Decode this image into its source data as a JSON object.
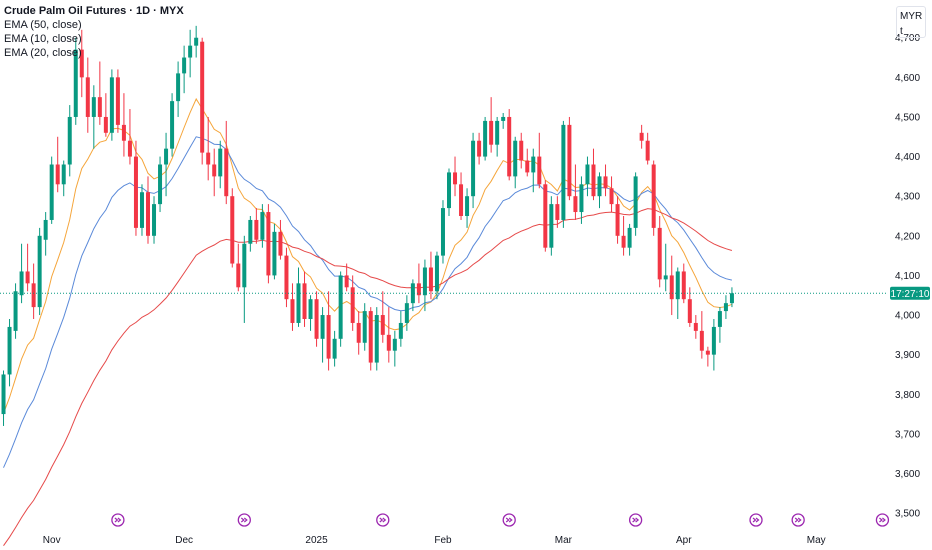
{
  "legend": {
    "title": "Crude Palm Oil Futures · 1D · MYX",
    "ema50": "EMA (50, close)",
    "ema10": "EMA (10, close)",
    "ema20": "EMA (20, close)"
  },
  "scale": {
    "currency": "MYR",
    "unit": "t"
  },
  "price_tag": "17:27:10",
  "colors": {
    "up": "#089981",
    "down": "#f23645",
    "ema10": "#f5a53a",
    "ema20": "#5b8ad9",
    "ema50": "#e64a4a",
    "last": "#089981",
    "event": "#9c27b0"
  },
  "chart_data": {
    "type": "candlestick",
    "title": "Crude Palm Oil Futures · 1D · MYX",
    "ylim": [
      3470,
      4770
    ],
    "yticks": [
      3500,
      3600,
      3700,
      3800,
      3900,
      4000,
      4100,
      4200,
      4300,
      4400,
      4500,
      4600,
      4700
    ],
    "ytick_labels": [
      "3,500",
      "3,600",
      "3,700",
      "3,800",
      "3,900",
      "4,000",
      "4,100",
      "4,200",
      "4,300",
      "4,400",
      "4,500",
      "4,600",
      "4,700"
    ],
    "xticks": [
      {
        "label": "Nov",
        "index": 9
      },
      {
        "label": "Dec",
        "index": 31
      },
      {
        "label": "2025",
        "index": 53
      },
      {
        "label": "Feb",
        "index": 74
      },
      {
        "label": "Mar",
        "index": 94
      },
      {
        "label": "Apr",
        "index": 114
      },
      {
        "label": "May",
        "index": 136
      }
    ],
    "events": [
      20,
      41,
      64,
      85,
      106,
      126,
      133,
      147
    ],
    "last_price": 4055,
    "candles": [
      [
        3750,
        3860,
        3720,
        3850
      ],
      [
        3850,
        3990,
        3820,
        3970
      ],
      [
        3960,
        4080,
        3940,
        4060
      ],
      [
        4050,
        4180,
        4030,
        4110
      ],
      [
        4110,
        4180,
        4060,
        4080
      ],
      [
        4080,
        4130,
        3990,
        4020
      ],
      [
        4020,
        4220,
        4000,
        4200
      ],
      [
        4190,
        4260,
        4150,
        4240
      ],
      [
        4240,
        4400,
        4230,
        4380
      ],
      [
        4380,
        4450,
        4310,
        4330
      ],
      [
        4330,
        4390,
        4300,
        4380
      ],
      [
        4380,
        4530,
        4350,
        4500
      ],
      [
        4500,
        4700,
        4480,
        4670
      ],
      [
        4670,
        4720,
        4550,
        4600
      ],
      [
        4600,
        4650,
        4460,
        4500
      ],
      [
        4500,
        4580,
        4420,
        4550
      ],
      [
        4550,
        4640,
        4480,
        4500
      ],
      [
        4500,
        4560,
        4450,
        4460
      ],
      [
        4460,
        4620,
        4440,
        4600
      ],
      [
        4600,
        4620,
        4460,
        4480
      ],
      [
        4480,
        4560,
        4400,
        4440
      ],
      [
        4440,
        4520,
        4380,
        4400
      ],
      [
        4400,
        4440,
        4200,
        4220
      ],
      [
        4220,
        4330,
        4200,
        4310
      ],
      [
        4310,
        4350,
        4180,
        4200
      ],
      [
        4200,
        4300,
        4180,
        4280
      ],
      [
        4280,
        4400,
        4260,
        4380
      ],
      [
        4380,
        4460,
        4300,
        4420
      ],
      [
        4420,
        4560,
        4400,
        4540
      ],
      [
        4540,
        4640,
        4500,
        4610
      ],
      [
        4610,
        4680,
        4560,
        4650
      ],
      [
        4650,
        4720,
        4600,
        4680
      ],
      [
        4680,
        4730,
        4650,
        4700
      ],
      [
        4690,
        4700,
        4380,
        4410
      ],
      [
        4410,
        4500,
        4340,
        4380
      ],
      [
        4380,
        4420,
        4300,
        4350
      ],
      [
        4350,
        4440,
        4320,
        4420
      ],
      [
        4420,
        4490,
        4280,
        4300
      ],
      [
        4300,
        4320,
        4120,
        4130
      ],
      [
        4130,
        4180,
        4060,
        4070
      ],
      [
        4070,
        4200,
        3980,
        4180
      ],
      [
        4180,
        4250,
        4160,
        4240
      ],
      [
        4240,
        4270,
        4180,
        4190
      ],
      [
        4190,
        4280,
        4170,
        4260
      ],
      [
        4260,
        4280,
        4080,
        4100
      ],
      [
        4100,
        4230,
        4090,
        4210
      ],
      [
        4210,
        4240,
        4140,
        4150
      ],
      [
        4150,
        4170,
        4020,
        4040
      ],
      [
        4040,
        4080,
        3960,
        3980
      ],
      [
        3980,
        4120,
        3970,
        4080
      ],
      [
        4080,
        4110,
        3970,
        3990
      ],
      [
        3990,
        4050,
        3960,
        4040
      ],
      [
        4040,
        4060,
        3920,
        3940
      ],
      [
        3940,
        4020,
        3880,
        4000
      ],
      [
        4000,
        4060,
        3860,
        3890
      ],
      [
        3890,
        3960,
        3870,
        3940
      ],
      [
        3940,
        4110,
        3920,
        4100
      ],
      [
        4100,
        4130,
        4060,
        4070
      ],
      [
        4070,
        4100,
        3960,
        3980
      ],
      [
        3980,
        4010,
        3900,
        3930
      ],
      [
        3930,
        4030,
        3910,
        4010
      ],
      [
        4010,
        4020,
        3860,
        3880
      ],
      [
        3880,
        4020,
        3860,
        4000
      ],
      [
        4000,
        4060,
        3930,
        3950
      ],
      [
        3950,
        4020,
        3880,
        3910
      ],
      [
        3910,
        3960,
        3870,
        3940
      ],
      [
        3940,
        4010,
        3920,
        3980
      ],
      [
        3980,
        4050,
        3960,
        4030
      ],
      [
        4030,
        4090,
        4010,
        4080
      ],
      [
        4080,
        4130,
        4030,
        4050
      ],
      [
        4050,
        4140,
        4010,
        4120
      ],
      [
        4120,
        4160,
        4040,
        4060
      ],
      [
        4060,
        4160,
        4040,
        4150
      ],
      [
        4150,
        4290,
        4130,
        4270
      ],
      [
        4270,
        4370,
        4250,
        4360
      ],
      [
        4360,
        4400,
        4300,
        4330
      ],
      [
        4330,
        4360,
        4240,
        4250
      ],
      [
        4250,
        4320,
        4220,
        4300
      ],
      [
        4300,
        4460,
        4270,
        4440
      ],
      [
        4440,
        4460,
        4380,
        4400
      ],
      [
        4400,
        4500,
        4390,
        4490
      ],
      [
        4490,
        4550,
        4410,
        4430
      ],
      [
        4430,
        4500,
        4400,
        4490
      ],
      [
        4490,
        4510,
        4470,
        4500
      ],
      [
        4500,
        4520,
        4340,
        4350
      ],
      [
        4350,
        4450,
        4320,
        4440
      ],
      [
        4440,
        4460,
        4370,
        4390
      ],
      [
        4390,
        4420,
        4350,
        4360
      ],
      [
        4360,
        4420,
        4310,
        4400
      ],
      [
        4400,
        4460,
        4320,
        4330
      ],
      [
        4330,
        4340,
        4160,
        4170
      ],
      [
        4170,
        4300,
        4150,
        4280
      ],
      [
        4280,
        4300,
        4220,
        4240
      ],
      [
        4240,
        4490,
        4220,
        4480
      ],
      [
        4480,
        4500,
        4290,
        4300
      ],
      [
        4300,
        4380,
        4240,
        4260
      ],
      [
        4260,
        4350,
        4230,
        4330
      ],
      [
        4330,
        4400,
        4300,
        4380
      ],
      [
        4380,
        4420,
        4290,
        4300
      ],
      [
        4300,
        4360,
        4270,
        4350
      ],
      [
        4350,
        4380,
        4300,
        4320
      ],
      [
        4320,
        4350,
        4260,
        4280
      ],
      [
        4280,
        4300,
        4180,
        4200
      ],
      [
        4200,
        4250,
        4150,
        4170
      ],
      [
        4170,
        4230,
        4150,
        4220
      ],
      [
        4220,
        4360,
        4200,
        4350
      ],
      [
        4460,
        4480,
        4420,
        4440
      ],
      [
        4440,
        4460,
        4380,
        4390
      ],
      [
        4380,
        4390,
        4200,
        4220
      ],
      [
        4220,
        4250,
        4070,
        4090
      ],
      [
        4090,
        4180,
        4060,
        4100
      ],
      [
        4100,
        4150,
        4000,
        4040
      ],
      [
        4040,
        4120,
        3990,
        4110
      ],
      [
        4110,
        4130,
        4030,
        4040
      ],
      [
        4040,
        4070,
        3970,
        3980
      ],
      [
        3980,
        4000,
        3940,
        3960
      ],
      [
        3960,
        4010,
        3890,
        3910
      ],
      [
        3910,
        3920,
        3870,
        3900
      ],
      [
        3900,
        3990,
        3860,
        3970
      ],
      [
        3970,
        4020,
        3930,
        4010
      ],
      [
        4010,
        4050,
        3990,
        4030
      ],
      [
        4030,
        4070,
        4020,
        4055
      ]
    ],
    "candle_index": [
      1,
      2,
      3,
      4,
      5,
      6,
      7,
      8,
      9,
      10,
      11,
      12,
      13,
      14,
      15,
      16,
      17,
      18,
      19,
      20,
      21,
      22,
      23,
      24,
      25,
      26,
      27,
      28,
      29,
      30,
      31,
      32,
      33,
      34,
      35,
      36,
      37,
      38,
      39,
      40,
      41,
      42,
      43,
      44,
      45,
      46,
      47,
      48,
      49,
      50,
      51,
      52,
      53,
      54,
      55,
      56,
      57,
      58,
      59,
      60,
      61,
      62,
      63,
      64,
      65,
      66,
      67,
      68,
      69,
      70,
      71,
      72,
      73,
      74,
      75,
      76,
      77,
      78,
      79,
      80,
      81,
      82,
      83,
      84,
      85,
      86,
      87,
      88,
      89,
      90,
      91,
      92,
      93,
      94,
      95,
      96,
      97,
      98,
      99,
      100,
      101,
      102,
      103,
      104,
      105,
      106,
      107,
      108,
      109,
      110,
      111,
      112,
      113,
      114,
      115,
      116,
      117,
      118,
      119,
      120,
      121,
      122,
      123,
      124,
      125,
      126,
      127
    ],
    "series": [
      {
        "name": "EMA (10, close)",
        "period": 10
      },
      {
        "name": "EMA (20, close)",
        "period": 20
      },
      {
        "name": "EMA (50, close)",
        "period": 50
      }
    ]
  }
}
